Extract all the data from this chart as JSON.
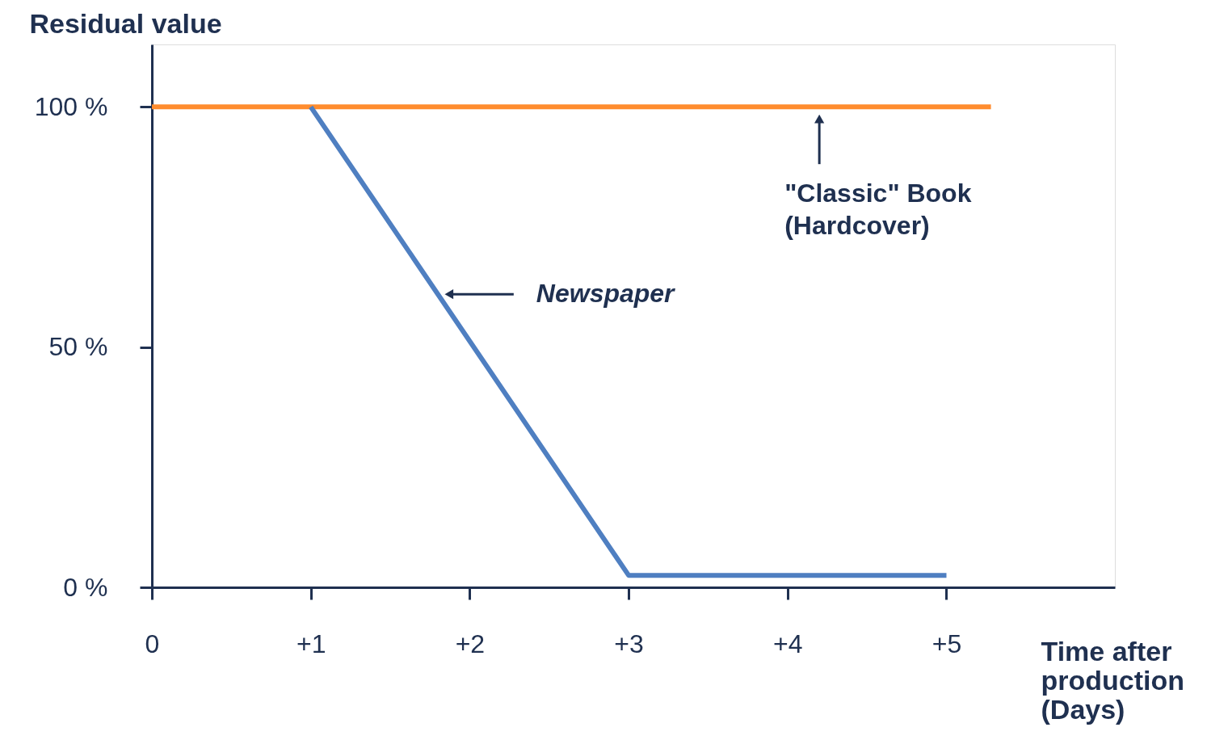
{
  "chart_data": {
    "type": "line",
    "xlabel": "Time after production (Days)",
    "ylabel": "Residual value",
    "xlim": [
      0,
      6.06
    ],
    "ylim": [
      0,
      113
    ],
    "xticks": [
      0,
      {
        "value": 1,
        "label": "+1"
      },
      {
        "value": 2,
        "label": "+2"
      },
      {
        "value": 3,
        "label": "+3"
      },
      {
        "value": 4,
        "label": "+4"
      },
      {
        "value": 5,
        "label": "+5"
      }
    ],
    "yticks": [
      {
        "value": 0,
        "label": "0 %"
      },
      {
        "value": 50,
        "label": "50 %"
      },
      {
        "value": 100,
        "label": "100 %"
      }
    ],
    "series": [
      {
        "color": "#ff8c2e",
        "x": [
          0,
          5.28
        ],
        "values": [
          100,
          100
        ]
      },
      {
        "color": "#4f7fc1",
        "x": [
          1,
          3,
          5
        ],
        "values": [
          100,
          2.5,
          2.5
        ]
      }
    ],
    "annotations": [
      {
        "text": "Newspaper",
        "x": 1.87,
        "y": 61
      },
      {
        "text": "\"Classic\" Book (Hardcover)",
        "x": 4.2,
        "y": 97.5
      }
    ],
    "grid": false,
    "legend": false,
    "marker": "none",
    "line_style": "solid"
  }
}
